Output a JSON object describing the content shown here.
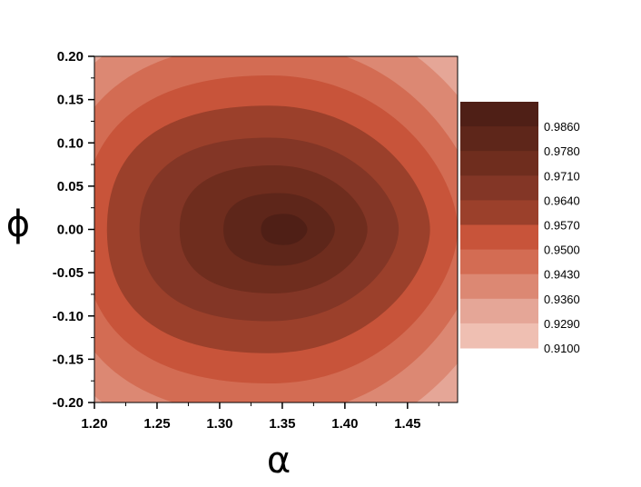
{
  "chart_data": {
    "type": "heatmap",
    "subtype": "filled-contour",
    "xlabel": "α",
    "ylabel": "ϕ",
    "xlim": [
      1.2,
      1.49
    ],
    "ylim": [
      -0.2,
      0.2
    ],
    "x_ticks": [
      "1.20",
      "1.25",
      "1.30",
      "1.35",
      "1.40",
      "1.45"
    ],
    "y_ticks": [
      "0.20",
      "0.15",
      "0.10",
      "0.05",
      "0.00",
      "-0.05",
      "-0.10",
      "-0.15",
      "-0.20"
    ],
    "peak": {
      "x": 1.355,
      "y": 0.0,
      "value": 0.989
    },
    "contour_levels": [
      0.91,
      0.929,
      0.936,
      0.943,
      0.95,
      0.957,
      0.964,
      0.971,
      0.978,
      0.986
    ],
    "colorbar": {
      "labels": [
        "0.9860",
        "0.9780",
        "0.9710",
        "0.9640",
        "0.9570",
        "0.9500",
        "0.9430",
        "0.9360",
        "0.9290",
        "0.9100"
      ],
      "colors": [
        "#4f1f16",
        "#5e261a",
        "#6f2d1e",
        "#833626",
        "#9b402b",
        "#c8543a",
        "#d36c53",
        "#dc8873",
        "#e5a697",
        "#efbfb2"
      ]
    },
    "grid": false,
    "legend": "right"
  }
}
